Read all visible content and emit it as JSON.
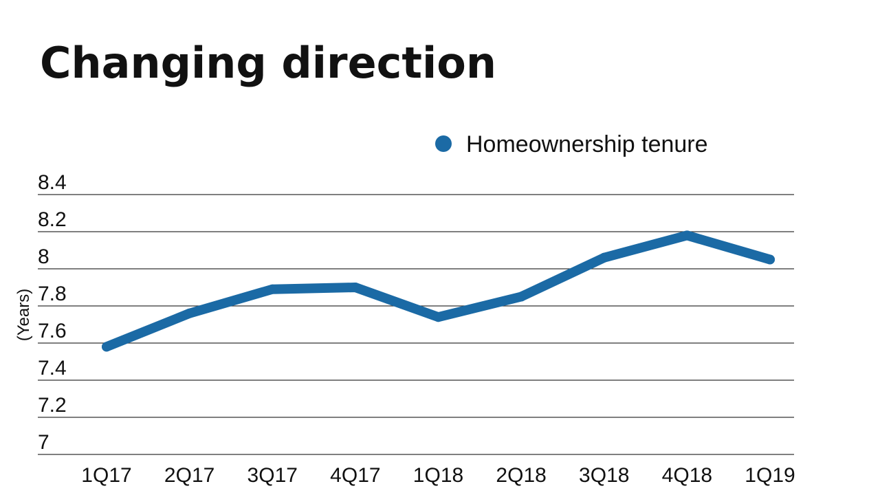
{
  "chart_data": {
    "type": "line",
    "title": "Changing direction",
    "xlabel": "",
    "ylabel": "(Years)",
    "categories": [
      "1Q17",
      "2Q17",
      "3Q17",
      "4Q17",
      "1Q18",
      "2Q18",
      "3Q18",
      "4Q18",
      "1Q19"
    ],
    "series": [
      {
        "name": "Homeownership tenure",
        "values": [
          7.58,
          7.76,
          7.89,
          7.9,
          7.74,
          7.85,
          8.06,
          8.18,
          8.05
        ]
      }
    ],
    "ylim": [
      7,
      8.4
    ],
    "yticks": [
      "7",
      "7.2",
      "7.4",
      "7.6",
      "7.8",
      "8",
      "8.2",
      "8.4"
    ],
    "grid": true,
    "legend_position": "top-right"
  },
  "colors": {
    "series": "#1b6aa5",
    "text": "#111111",
    "grid": "#333333"
  }
}
